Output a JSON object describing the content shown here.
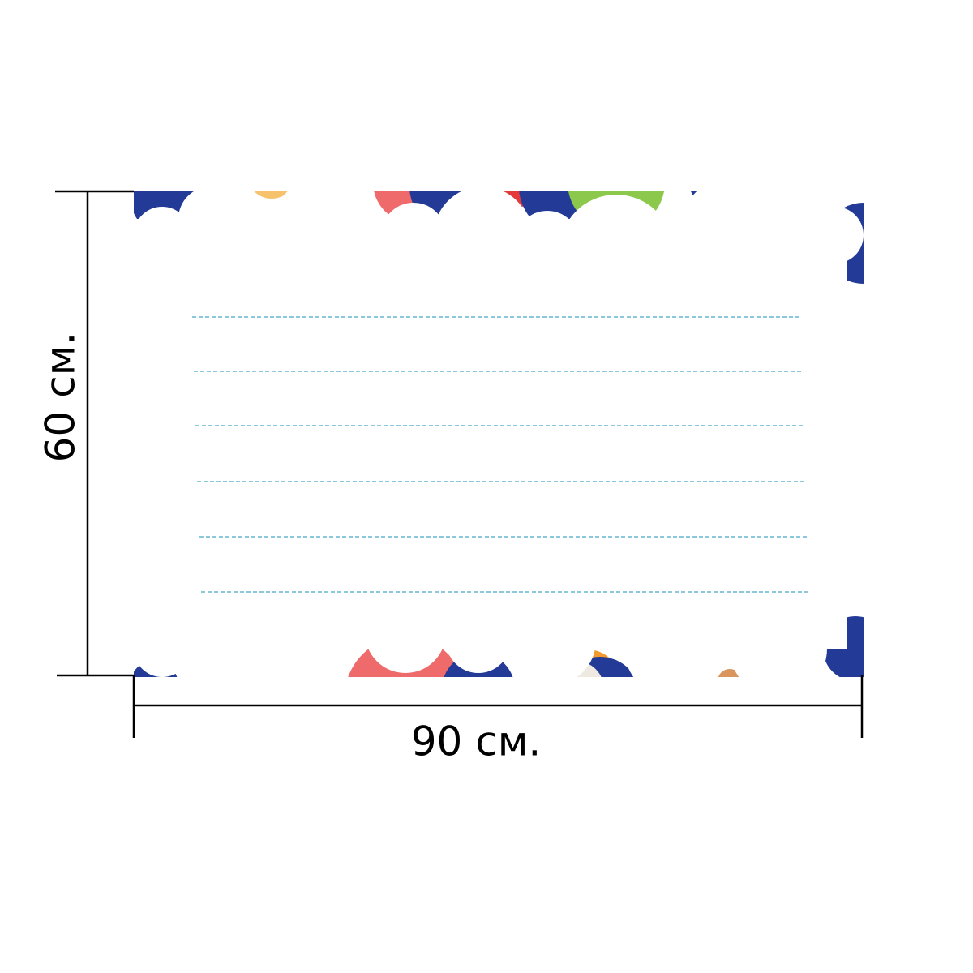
{
  "dimensions": {
    "height_label": "60 см.",
    "width_label": "90 см."
  }
}
